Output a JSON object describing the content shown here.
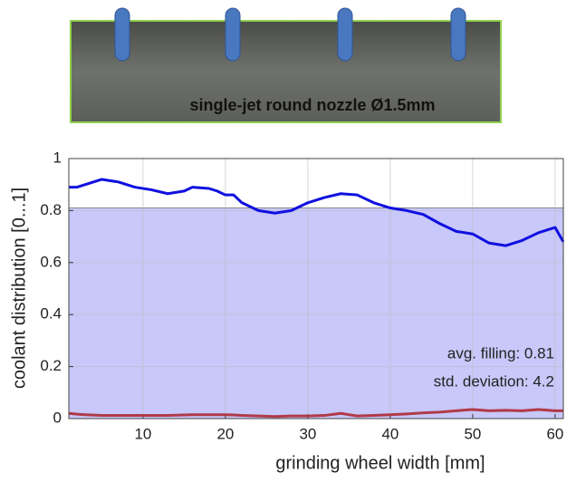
{
  "chart_data": {
    "type": "line",
    "title": "single-jet round nozzle Ø1.5mm",
    "x_label": "grinding wheel width [mm]",
    "y_label": "coolant distribution [0...1]",
    "x": [
      1,
      2,
      3,
      5,
      7,
      9,
      11,
      13,
      15,
      16,
      18,
      19,
      20,
      21,
      22,
      24,
      26,
      28,
      30,
      32,
      34,
      36,
      38,
      40,
      42,
      44,
      46,
      48,
      50,
      52,
      54,
      56,
      58,
      60,
      61
    ],
    "series": [
      {
        "color": "#1010e0",
        "values": [
          0.89,
          0.89,
          0.9,
          0.92,
          0.91,
          0.89,
          0.88,
          0.865,
          0.875,
          0.89,
          0.885,
          0.875,
          0.86,
          0.86,
          0.83,
          0.8,
          0.79,
          0.8,
          0.83,
          0.85,
          0.865,
          0.86,
          0.83,
          0.81,
          0.8,
          0.785,
          0.75,
          0.72,
          0.71,
          0.675,
          0.665,
          0.685,
          0.715,
          0.735,
          0.68
        ]
      },
      {
        "color": "#b03a48",
        "values": [
          0.02,
          0.017,
          0.015,
          0.012,
          0.012,
          0.012,
          0.012,
          0.012,
          0.014,
          0.015,
          0.015,
          0.015,
          0.015,
          0.014,
          0.012,
          0.01,
          0.008,
          0.01,
          0.01,
          0.012,
          0.02,
          0.01,
          0.012,
          0.015,
          0.018,
          0.022,
          0.025,
          0.03,
          0.035,
          0.03,
          0.032,
          0.03,
          0.035,
          0.03,
          0.03
        ]
      }
    ],
    "fill_level": 0.81,
    "fill_color": "#c8c8fa",
    "annotations": [
      "avg. filling: 0.81",
      "std. deviation: 4.2"
    ],
    "xlim": [
      1,
      61
    ],
    "xticks": [
      10,
      20,
      30,
      40,
      50,
      60
    ],
    "ylim": [
      0,
      1
    ],
    "yticks": [
      0,
      0.2,
      0.4,
      0.6,
      0.8,
      1
    ],
    "grid": true
  }
}
